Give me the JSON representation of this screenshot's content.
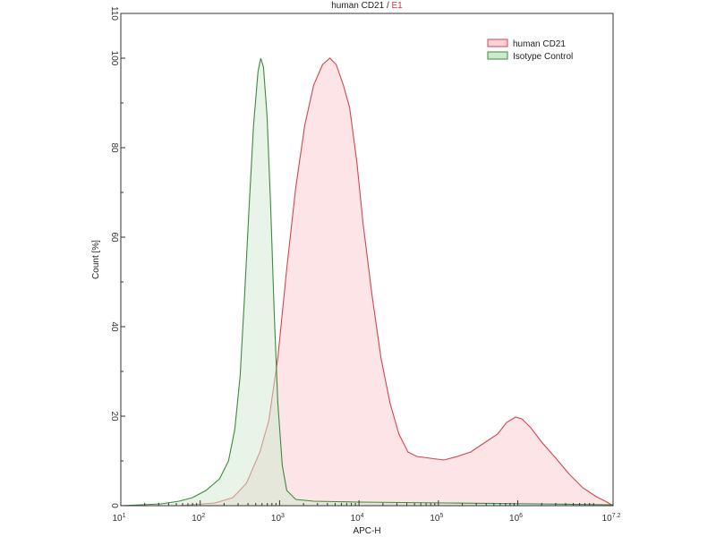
{
  "chart_data": {
    "type": "area",
    "title": "human CD21",
    "title_separator": " / ",
    "title_suffix": "E1",
    "title_suffix_color": "#d0303a",
    "xlabel": "APC-H",
    "ylabel": "Count [%]",
    "x_scale": "log",
    "xlim": [
      10,
      15848932
    ],
    "ylim": [
      0,
      110
    ],
    "x_ticks": [
      {
        "value": 10,
        "base": "10",
        "exp": "1"
      },
      {
        "value": 100,
        "base": "10",
        "exp": "2"
      },
      {
        "value": 1000,
        "base": "10",
        "exp": "3"
      },
      {
        "value": 10000,
        "base": "10",
        "exp": "4"
      },
      {
        "value": 100000,
        "base": "10",
        "exp": "5"
      },
      {
        "value": 1000000,
        "base": "10",
        "exp": "6"
      },
      {
        "value": 15848932,
        "base": "10",
        "exp": "7.2"
      }
    ],
    "y_ticks": [
      "0",
      "20",
      "40",
      "60",
      "80",
      "100",
      "110"
    ],
    "grid": false,
    "legend_position": "top-right",
    "series": [
      {
        "name": "human CD21",
        "line_color": "#d4454f",
        "fill_color": "#fbd3d7",
        "x": [
          54,
          153,
          258,
          382,
          564,
          731,
          948,
          1231,
          1596,
          2071,
          2685,
          3483,
          4295,
          5152,
          6340,
          7600,
          9370,
          11250,
          14590,
          18920,
          24550,
          31840,
          41300,
          53580,
          79100,
          117000,
          172700,
          255300,
          376700,
          557000,
          722000,
          937000,
          1125000,
          1459000,
          2046000,
          3020000,
          4467000,
          6590000,
          9750000,
          12650000,
          15848932
        ],
        "y": [
          0,
          0.6,
          1.8,
          5,
          12,
          19,
          33,
          53,
          71,
          85,
          94,
          98.6,
          100,
          98.6,
          94,
          89,
          77,
          63,
          47,
          33,
          23,
          16,
          12,
          11,
          10.6,
          10.2,
          11,
          12,
          14,
          16,
          18.6,
          19.8,
          19.4,
          17.4,
          14,
          10.6,
          7,
          4,
          2,
          1,
          0
        ]
      },
      {
        "name": "Isotype Control",
        "line_color": "#3d8a3d",
        "fill_color": "#cfe9cf",
        "x": [
          10,
          32,
          54,
          80,
          118,
          175,
          227,
          272,
          318,
          362,
          413,
          470,
          535,
          579,
          627,
          695,
          771,
          855,
          948,
          1081,
          1231,
          1596,
          2685,
          9860,
          133000,
          1795000,
          15848932
        ],
        "y": [
          0,
          0.4,
          1,
          1.8,
          3.4,
          6,
          10,
          17,
          29,
          47,
          67,
          85,
          97,
          100,
          98,
          87,
          67,
          43,
          23,
          9,
          3.4,
          1.4,
          1,
          0.8,
          0.6,
          0.4,
          0.2
        ]
      }
    ]
  }
}
